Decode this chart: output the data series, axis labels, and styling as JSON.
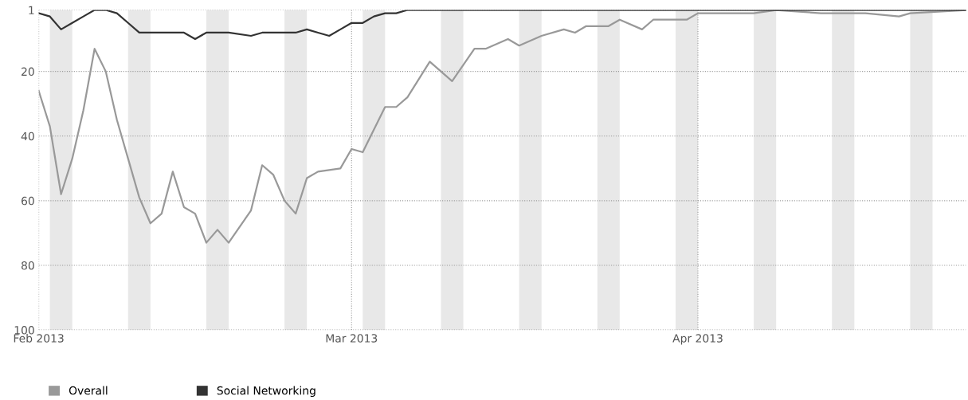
{
  "chart_data": {
    "type": "line",
    "x": [
      "2013-02-01",
      "2013-02-02",
      "2013-02-03",
      "2013-02-04",
      "2013-02-05",
      "2013-02-06",
      "2013-02-07",
      "2013-02-08",
      "2013-02-09",
      "2013-02-10",
      "2013-02-11",
      "2013-02-12",
      "2013-02-13",
      "2013-02-14",
      "2013-02-15",
      "2013-02-16",
      "2013-02-17",
      "2013-02-18",
      "2013-02-20",
      "2013-02-21",
      "2013-02-22",
      "2013-02-23",
      "2013-02-24",
      "2013-02-25",
      "2013-02-26",
      "2013-02-28",
      "2013-03-01",
      "2013-03-02",
      "2013-03-04",
      "2013-03-05",
      "2013-03-06",
      "2013-03-08",
      "2013-03-10",
      "2013-03-12",
      "2013-03-13",
      "2013-03-15",
      "2013-03-16",
      "2013-03-18",
      "2013-03-20",
      "2013-03-21",
      "2013-03-22",
      "2013-03-24",
      "2013-03-25",
      "2013-03-27",
      "2013-03-28",
      "2013-03-31",
      "2013-04-01",
      "2013-04-02",
      "2013-04-04",
      "2013-04-05",
      "2013-04-06",
      "2013-04-08",
      "2013-04-12",
      "2013-04-16",
      "2013-04-19",
      "2013-04-20",
      "2013-04-25"
    ],
    "series": [
      {
        "name": "Overall",
        "color": "#999999",
        "values": [
          26,
          37,
          58,
          47,
          32,
          13,
          20,
          35,
          47,
          59,
          67,
          64,
          51,
          62,
          64,
          73,
          69,
          73,
          63,
          49,
          52,
          60,
          64,
          53,
          51,
          50,
          44,
          45,
          31,
          31,
          28,
          17,
          23,
          13,
          13,
          10,
          12,
          9,
          7,
          8,
          6,
          6,
          4,
          7,
          4,
          4,
          2,
          2,
          2,
          2,
          2,
          1,
          2,
          2,
          3,
          2,
          1
        ]
      },
      {
        "name": "Social Networking",
        "color": "#333333",
        "x": [
          "2013-02-01",
          "2013-02-02",
          "2013-02-03",
          "2013-02-04",
          "2013-02-05",
          "2013-02-06",
          "2013-02-07",
          "2013-02-08",
          "2013-02-09",
          "2013-02-10",
          "2013-02-11",
          "2013-02-13",
          "2013-02-14",
          "2013-02-15",
          "2013-02-16",
          "2013-02-17",
          "2013-02-18",
          "2013-02-20",
          "2013-02-21",
          "2013-02-22",
          "2013-02-24",
          "2013-02-25",
          "2013-02-26",
          "2013-02-27",
          "2013-02-28",
          "2013-03-01",
          "2013-03-02",
          "2013-03-03",
          "2013-03-04",
          "2013-03-05",
          "2013-03-06",
          "2013-04-25"
        ],
        "values": [
          2,
          3,
          7,
          5,
          3,
          1,
          1,
          2,
          5,
          8,
          8,
          8,
          8,
          10,
          8,
          8,
          8,
          9,
          8,
          8,
          8,
          7,
          8,
          9,
          7,
          5,
          5,
          3,
          2,
          2,
          1,
          1
        ]
      }
    ],
    "xlim": [
      "2013-02-01",
      "2013-04-25"
    ],
    "xticks": [
      {
        "value": "2013-02-01",
        "label": "Feb 2013"
      },
      {
        "value": "2013-03-01",
        "label": "Mar 2013"
      },
      {
        "value": "2013-04-01",
        "label": "Apr 2013"
      }
    ],
    "ylim": [
      100,
      1
    ],
    "yticks": [
      1,
      20,
      40,
      60,
      80,
      100
    ],
    "grid": true,
    "legend": "bottom left",
    "bands": [
      {
        "axis": "x",
        "from": "2013-02-02",
        "to": "2013-02-04",
        "color": "#e8e8e8"
      },
      {
        "axis": "x",
        "from": "2013-02-09",
        "to": "2013-02-11",
        "color": "#e8e8e8"
      },
      {
        "axis": "x",
        "from": "2013-02-16",
        "to": "2013-02-18",
        "color": "#e8e8e8"
      },
      {
        "axis": "x",
        "from": "2013-02-23",
        "to": "2013-02-25",
        "color": "#e8e8e8"
      },
      {
        "axis": "x",
        "from": "2013-03-02",
        "to": "2013-03-04",
        "color": "#e8e8e8"
      },
      {
        "axis": "x",
        "from": "2013-03-09",
        "to": "2013-03-11",
        "color": "#e8e8e8"
      },
      {
        "axis": "x",
        "from": "2013-03-16",
        "to": "2013-03-18",
        "color": "#e8e8e8"
      },
      {
        "axis": "x",
        "from": "2013-03-23",
        "to": "2013-03-25",
        "color": "#e8e8e8"
      },
      {
        "axis": "x",
        "from": "2013-03-30",
        "to": "2013-04-01",
        "color": "#e8e8e8"
      },
      {
        "axis": "x",
        "from": "2013-04-06",
        "to": "2013-04-08",
        "color": "#e8e8e8"
      },
      {
        "axis": "x",
        "from": "2013-04-13",
        "to": "2013-04-15",
        "color": "#e8e8e8"
      },
      {
        "axis": "x",
        "from": "2013-04-20",
        "to": "2013-04-22",
        "color": "#e8e8e8"
      }
    ]
  }
}
